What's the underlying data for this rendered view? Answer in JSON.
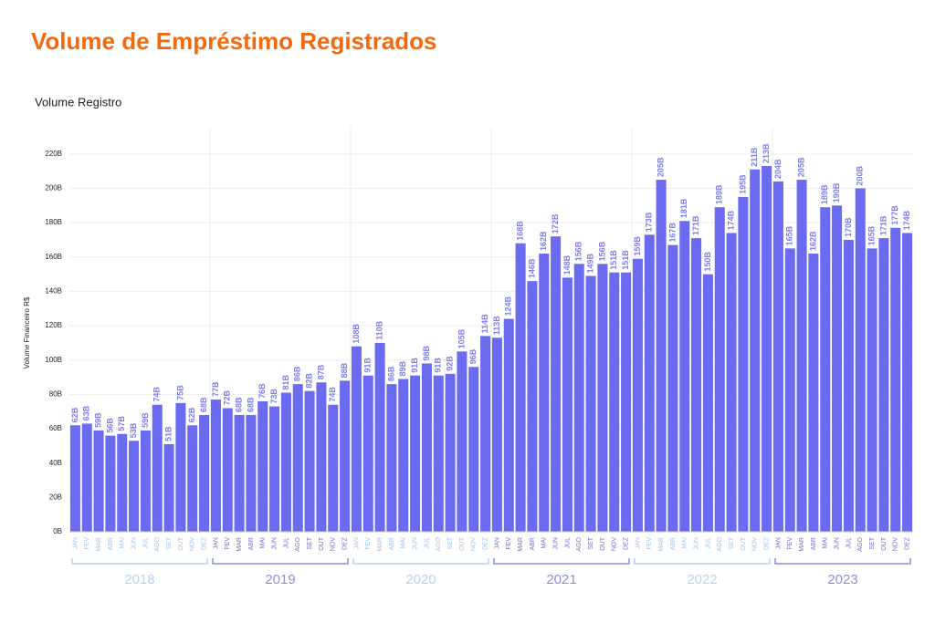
{
  "chart_data": {
    "type": "bar",
    "title": "Volume de Empréstimo Registrados",
    "subtitle": "Volume Registro",
    "y_label": "Volume Financeiro R$",
    "color": "#6b6bf2",
    "ylim": [
      0,
      230
    ],
    "yticks": [
      {
        "value": 0,
        "label": "0B"
      },
      {
        "value": 20,
        "label": "20B"
      },
      {
        "value": 40,
        "label": "40B"
      },
      {
        "value": 60,
        "label": "60B"
      },
      {
        "value": 80,
        "label": "80B"
      },
      {
        "value": 100,
        "label": "100B"
      },
      {
        "value": 120,
        "label": "120B"
      },
      {
        "value": 140,
        "label": "140B"
      },
      {
        "value": 160,
        "label": "160B"
      },
      {
        "value": 180,
        "label": "180B"
      },
      {
        "value": 200,
        "label": "200B"
      },
      {
        "value": 220,
        "label": "220B"
      }
    ],
    "grid": true,
    "years": [
      "2018",
      "2019",
      "2020",
      "2021",
      "2022",
      "2023"
    ],
    "categories": [
      "JAN",
      "FEV",
      "MAR",
      "ABR",
      "MAI",
      "JUN",
      "JUL",
      "AGO",
      "SET",
      "OUT",
      "NOV",
      "DEZ",
      "JAN",
      "FEV",
      "MAR",
      "ABR",
      "MAI",
      "JUN",
      "JUL",
      "AGO",
      "SET",
      "OUT",
      "NOV",
      "DEZ",
      "JAN",
      "FEV",
      "MAR",
      "ABR",
      "MAI",
      "JUN",
      "JUL",
      "AGO",
      "SET",
      "OUT",
      "NOV",
      "DEZ",
      "JAN",
      "FEV",
      "MAR",
      "ABR",
      "MAI",
      "JUN",
      "JUL",
      "AGO",
      "SET",
      "OUT",
      "NOV",
      "DEZ",
      "JAN",
      "FEV",
      "MAR",
      "ABR",
      "MAI",
      "JUN",
      "JUL",
      "AGO",
      "SET",
      "OUT",
      "NOV",
      "DEZ",
      "JAN",
      "FEV",
      "MAR",
      "ABR",
      "MAI",
      "JUN",
      "JUL",
      "AGO",
      "SET",
      "OUT",
      "NOV",
      "DEZ"
    ],
    "values": [
      62,
      63,
      59,
      56,
      57,
      53,
      59,
      74,
      51,
      75,
      62,
      68,
      77,
      72,
      68,
      68,
      76,
      73,
      81,
      86,
      82,
      87,
      74,
      88,
      108,
      91,
      110,
      86,
      89,
      91,
      98,
      91,
      92,
      105,
      96,
      114,
      113,
      124,
      168,
      146,
      162,
      172,
      148,
      156,
      149,
      156,
      151,
      151,
      159,
      173,
      205,
      167,
      181,
      171,
      150,
      189,
      174,
      195,
      211,
      213,
      204,
      165,
      205,
      162,
      189,
      190,
      170,
      200,
      165,
      171,
      177,
      174
    ],
    "value_labels": [
      "62B",
      "63B",
      "59B",
      "56B",
      "57B",
      "53B",
      "59B",
      "74B",
      "51B",
      "75B",
      "62B",
      "68B",
      "77B",
      "72B",
      "68B",
      "68B",
      "76B",
      "73B",
      "81B",
      "86B",
      "82B",
      "87B",
      "74B",
      "88B",
      "108B",
      "91B",
      "110B",
      "86B",
      "89B",
      "91B",
      "98B",
      "91B",
      "92B",
      "105B",
      "96B",
      "114B",
      "113B",
      "124B",
      "168B",
      "146B",
      "162B",
      "172B",
      "148B",
      "156B",
      "149B",
      "156B",
      "151B",
      "151B",
      "159B",
      "173B",
      "205B",
      "167B",
      "181B",
      "171B",
      "150B",
      "189B",
      "174B",
      "195B",
      "211B",
      "213B",
      "204B",
      "165B",
      "205B",
      "162B",
      "189B",
      "190B",
      "170B",
      "200B",
      "165B",
      "171B",
      "177B",
      "174B"
    ]
  }
}
